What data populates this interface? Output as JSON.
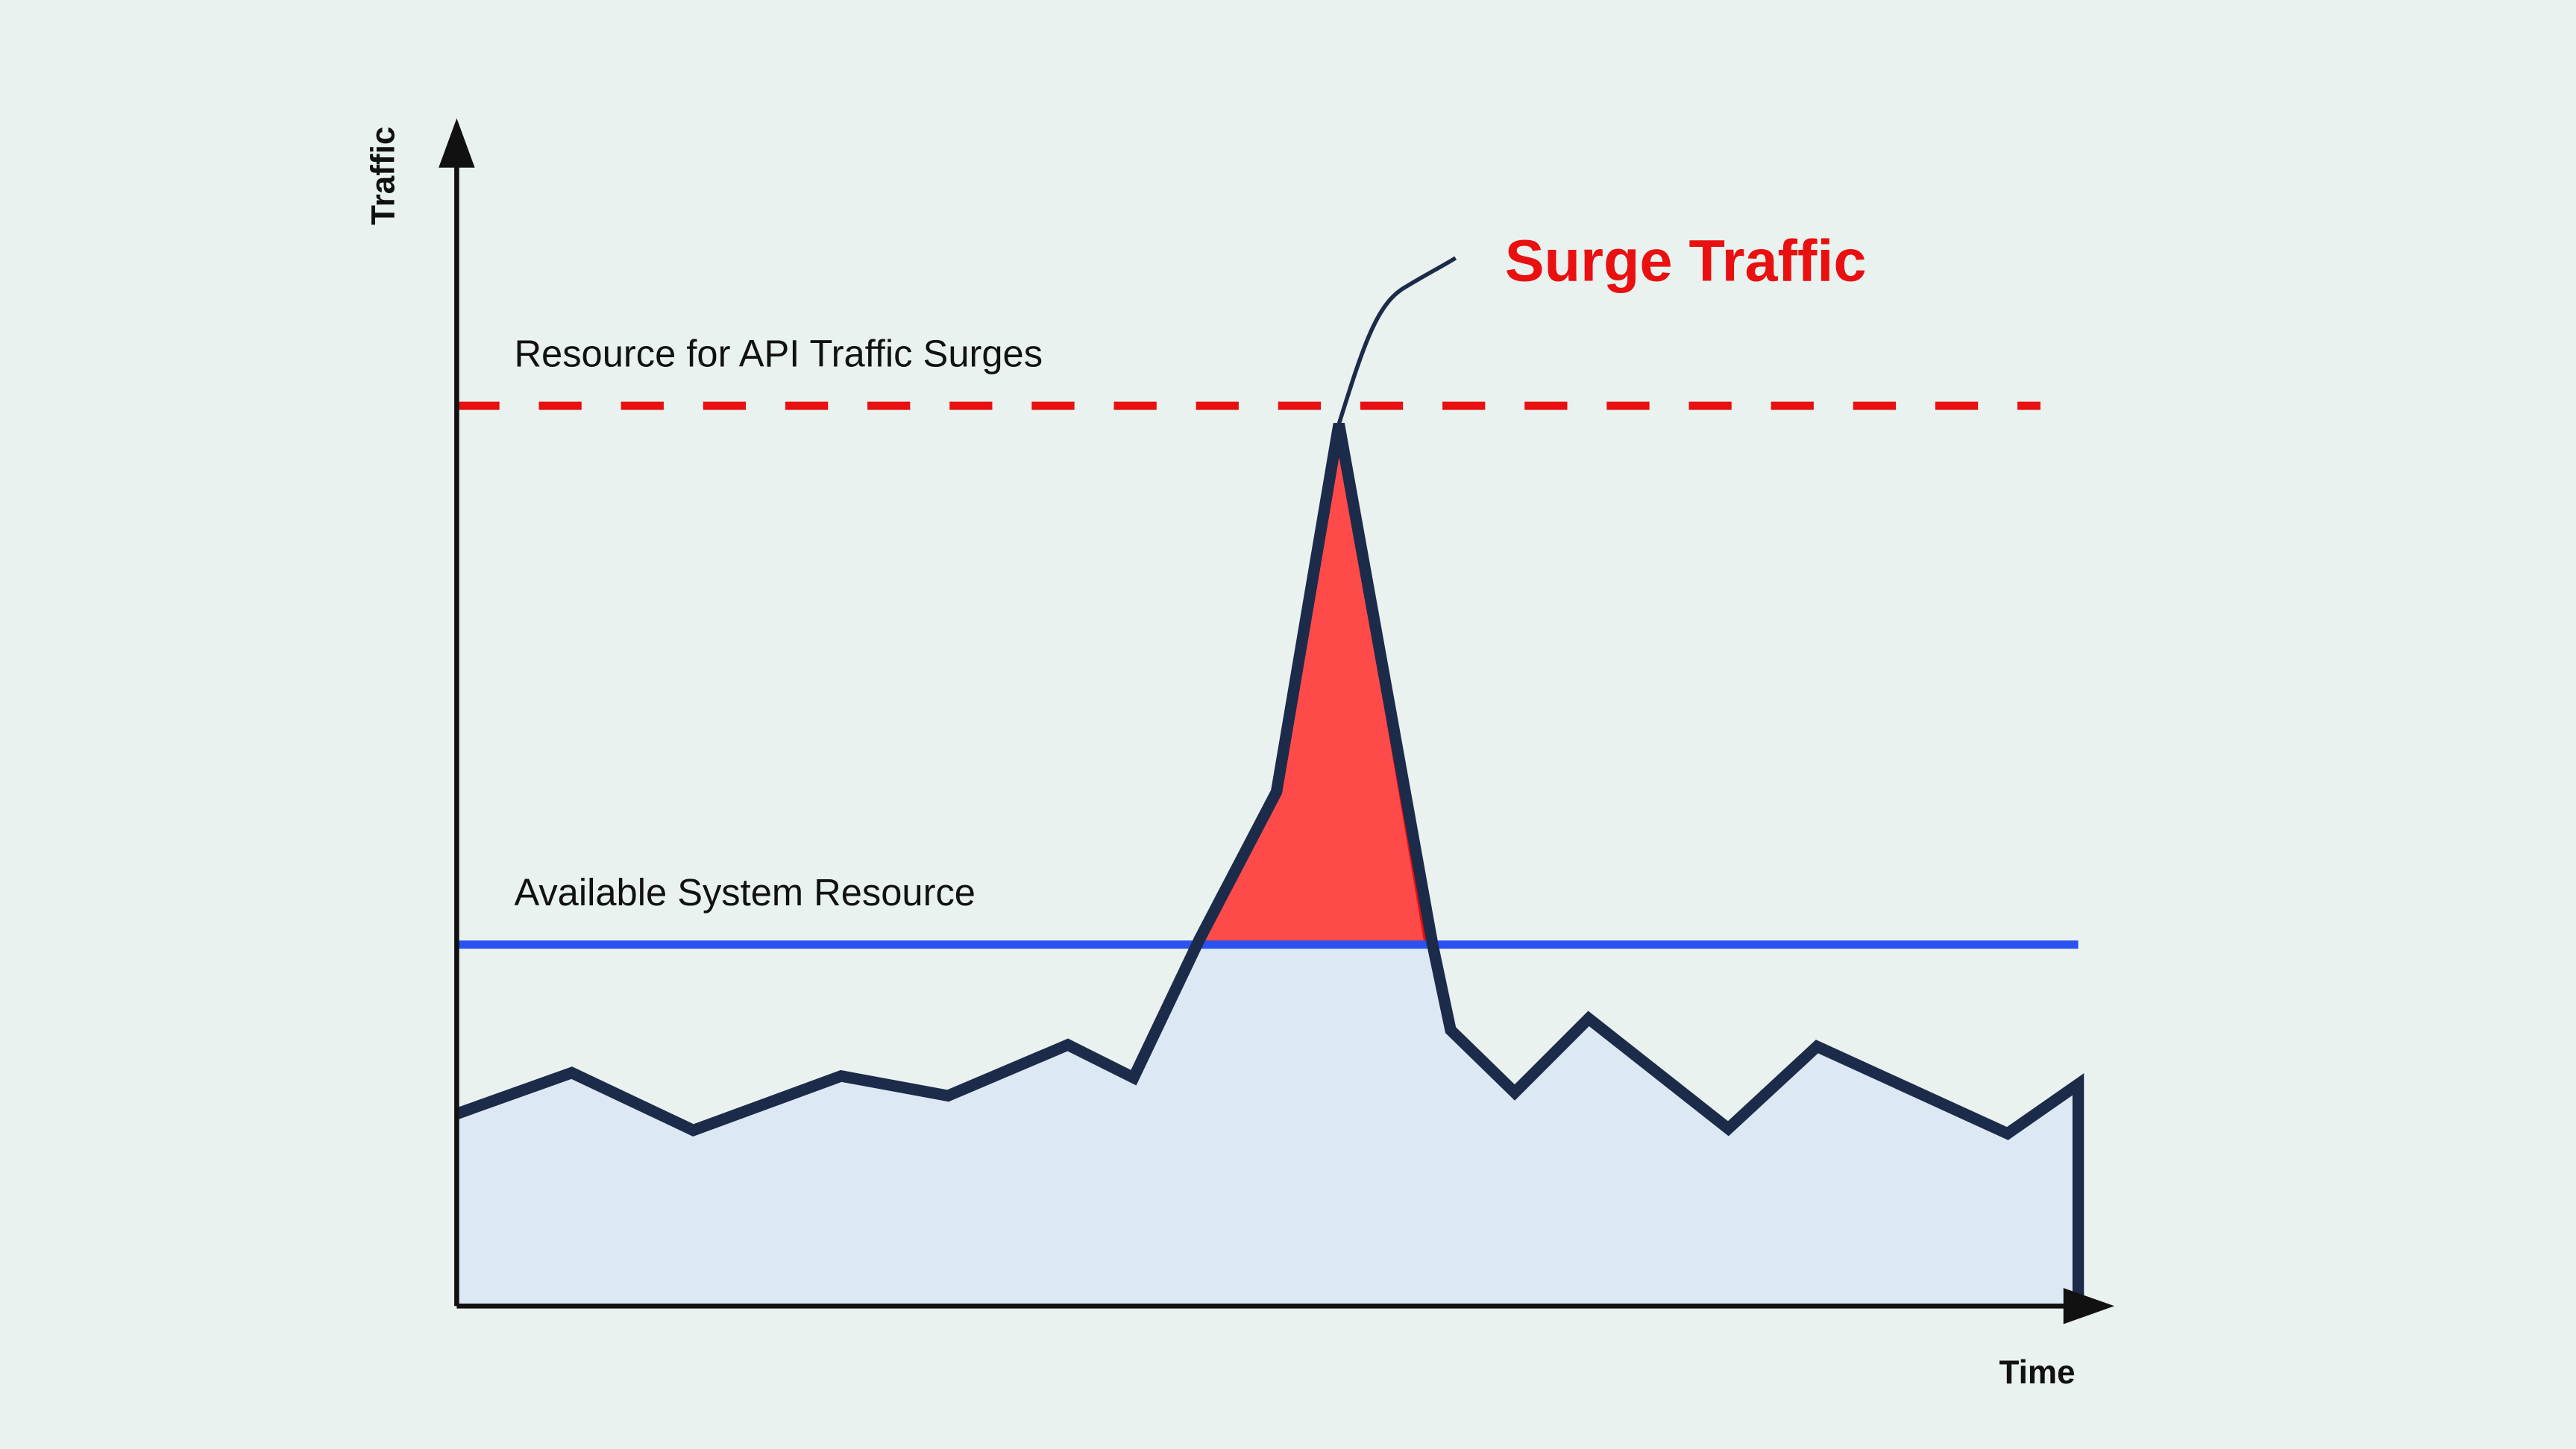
{
  "axes": {
    "y_label": "Traffic",
    "x_label": "Time"
  },
  "annotations": {
    "surge_label": "Surge Traffic",
    "surge_resource_label": "Resource for API Traffic Surges",
    "available_resource_label": "Available System Resource"
  }
}
